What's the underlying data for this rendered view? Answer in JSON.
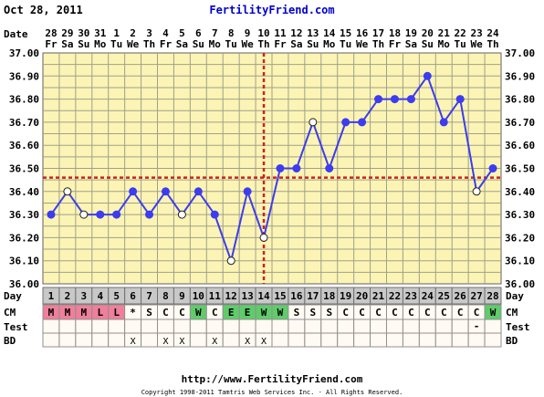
{
  "header": {
    "date": "Oct 28, 2011",
    "site": "FertilityFriend.com"
  },
  "footer": {
    "url": "http://www.FertilityFriend.com",
    "copyright": "Copyright 1998-2011 Tamtris Web Services Inc. - All Rights Reserved."
  },
  "row_labels": {
    "date": "Date",
    "day": "Day",
    "cm": "CM",
    "test": "Test",
    "bd": "BD"
  },
  "colors": {
    "background": "#fbf4b4",
    "grid": "#a0a08c",
    "line": "#3c3cf0",
    "coverline": "#cc2222",
    "cm_menstrual": "#ef7f9a",
    "cm_fertile": "#5fcc6a",
    "day_row": "#c8c8c8",
    "cell": "#fffaf3"
  },
  "chart_data": {
    "type": "line",
    "dates": [
      {
        "d": "28",
        "w": "Fr"
      },
      {
        "d": "29",
        "w": "Sa"
      },
      {
        "d": "30",
        "w": "Su"
      },
      {
        "d": "31",
        "w": "Mo"
      },
      {
        "d": "1",
        "w": "Tu"
      },
      {
        "d": "2",
        "w": "We"
      },
      {
        "d": "3",
        "w": "Th"
      },
      {
        "d": "4",
        "w": "Fr"
      },
      {
        "d": "5",
        "w": "Sa"
      },
      {
        "d": "6",
        "w": "Su"
      },
      {
        "d": "7",
        "w": "Mo"
      },
      {
        "d": "8",
        "w": "Tu"
      },
      {
        "d": "9",
        "w": "We"
      },
      {
        "d": "10",
        "w": "Th"
      },
      {
        "d": "11",
        "w": "Fr"
      },
      {
        "d": "12",
        "w": "Sa"
      },
      {
        "d": "13",
        "w": "Su"
      },
      {
        "d": "14",
        "w": "Mo"
      },
      {
        "d": "15",
        "w": "Tu"
      },
      {
        "d": "16",
        "w": "We"
      },
      {
        "d": "17",
        "w": "Th"
      },
      {
        "d": "18",
        "w": "Fr"
      },
      {
        "d": "19",
        "w": "Sa"
      },
      {
        "d": "20",
        "w": "Su"
      },
      {
        "d": "21",
        "w": "Mo"
      },
      {
        "d": "22",
        "w": "Tu"
      },
      {
        "d": "23",
        "w": "We"
      },
      {
        "d": "24",
        "w": "Th"
      }
    ],
    "days": [
      1,
      2,
      3,
      4,
      5,
      6,
      7,
      8,
      9,
      10,
      11,
      12,
      13,
      14,
      15,
      16,
      17,
      18,
      19,
      20,
      21,
      22,
      23,
      24,
      25,
      26,
      27,
      28
    ],
    "temps": [
      36.3,
      36.4,
      36.3,
      36.3,
      36.3,
      36.4,
      36.3,
      36.4,
      36.3,
      36.4,
      36.3,
      36.1,
      36.4,
      36.2,
      36.5,
      36.5,
      36.7,
      36.5,
      36.7,
      36.7,
      36.8,
      36.8,
      36.8,
      36.9,
      36.7,
      36.8,
      36.4,
      36.5
    ],
    "open_markers": [
      false,
      true,
      true,
      false,
      false,
      false,
      false,
      false,
      true,
      false,
      false,
      true,
      false,
      true,
      false,
      false,
      true,
      false,
      false,
      false,
      false,
      false,
      false,
      false,
      false,
      false,
      true,
      false
    ],
    "ylim": [
      36.0,
      37.0
    ],
    "yticks": [
      "36.00",
      "36.10",
      "36.20",
      "36.30",
      "36.40",
      "36.50",
      "36.60",
      "36.70",
      "36.80",
      "36.90",
      "37.00"
    ],
    "coverline": 36.46,
    "ovulation_day": 14,
    "grid": true,
    "cm": [
      "M",
      "M",
      "M",
      "L",
      "L",
      "*",
      "S",
      "C",
      "C",
      "W",
      "C",
      "E",
      "E",
      "W",
      "W",
      "S",
      "S",
      "S",
      "C",
      "C",
      "C",
      "C",
      "C",
      "C",
      "C",
      "C",
      "C",
      "W"
    ],
    "test": [
      "",
      "",
      "",
      "",
      "",
      "",
      "",
      "",
      "",
      "",
      "",
      "",
      "",
      "",
      "",
      "",
      "",
      "",
      "",
      "",
      "",
      "",
      "",
      "",
      "",
      "",
      "-",
      ""
    ],
    "bd": [
      "",
      "",
      "",
      "",
      "",
      "X",
      "",
      "X",
      "X",
      "",
      "X",
      "",
      "X",
      "X",
      "",
      "",
      "",
      "",
      "",
      "",
      "",
      "",
      "",
      "",
      "",
      "",
      "",
      ""
    ]
  }
}
